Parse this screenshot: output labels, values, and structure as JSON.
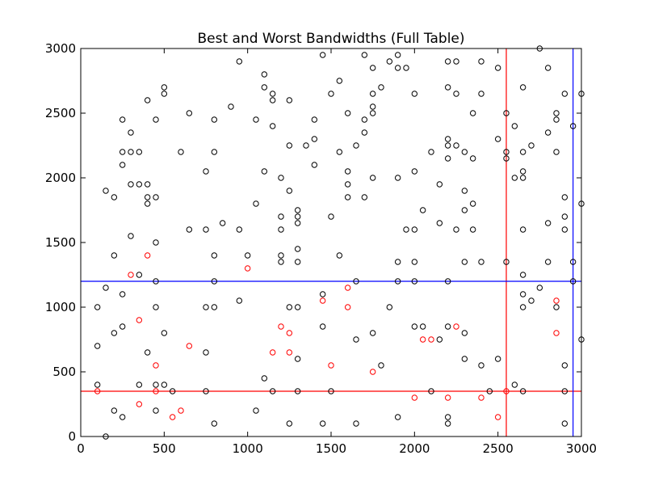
{
  "chart_data": {
    "type": "scatter",
    "title": "Best and Worst Bandwidths (Full Table)",
    "xlabel": "",
    "ylabel": "",
    "xlim": [
      0,
      3000
    ],
    "ylim": [
      0,
      3000
    ],
    "xticks": [
      0,
      500,
      1000,
      1500,
      2000,
      2500,
      3000
    ],
    "yticks": [
      0,
      500,
      1000,
      1500,
      2000,
      2500,
      3000
    ],
    "xtick_labels": [
      "0",
      "500",
      "1000",
      "1500",
      "2000",
      "2500",
      "3000"
    ],
    "ytick_labels": [
      "0",
      "500",
      "1000",
      "1500",
      "2000",
      "2500",
      "3000"
    ],
    "grid": false,
    "legend": "none",
    "colors": {
      "points_black": "#000000",
      "points_red": "#ff0000",
      "line_red": "#ff0000",
      "line_blue": "#0000ff"
    },
    "reference_lines": [
      {
        "orientation": "horizontal",
        "value": 350,
        "color": "#ff0000"
      },
      {
        "orientation": "vertical",
        "value": 2550,
        "color": "#ff0000"
      },
      {
        "orientation": "horizontal",
        "value": 1200,
        "color": "#0000ff"
      },
      {
        "orientation": "vertical",
        "value": 2950,
        "color": "#0000ff"
      }
    ],
    "series": [
      {
        "color": "#000000",
        "points": [
          [
            150,
            0
          ],
          [
            100,
            400
          ],
          [
            100,
            700
          ],
          [
            100,
            1000
          ],
          [
            150,
            1150
          ],
          [
            150,
            1900
          ],
          [
            200,
            200
          ],
          [
            200,
            800
          ],
          [
            200,
            1400
          ],
          [
            200,
            1850
          ],
          [
            250,
            150
          ],
          [
            250,
            850
          ],
          [
            250,
            1100
          ],
          [
            250,
            2100
          ],
          [
            250,
            2200
          ],
          [
            250,
            2450
          ],
          [
            300,
            1550
          ],
          [
            300,
            1950
          ],
          [
            300,
            2200
          ],
          [
            300,
            2350
          ],
          [
            350,
            400
          ],
          [
            350,
            1250
          ],
          [
            350,
            1950
          ],
          [
            350,
            2200
          ],
          [
            400,
            650
          ],
          [
            400,
            1800
          ],
          [
            400,
            1850
          ],
          [
            400,
            1950
          ],
          [
            400,
            2600
          ],
          [
            450,
            200
          ],
          [
            450,
            400
          ],
          [
            450,
            1000
          ],
          [
            450,
            1200
          ],
          [
            450,
            1500
          ],
          [
            450,
            1850
          ],
          [
            450,
            2450
          ],
          [
            500,
            400
          ],
          [
            500,
            800
          ],
          [
            500,
            2650
          ],
          [
            500,
            2700
          ],
          [
            550,
            350
          ],
          [
            600,
            2200
          ],
          [
            650,
            1600
          ],
          [
            650,
            2500
          ],
          [
            750,
            350
          ],
          [
            750,
            650
          ],
          [
            750,
            1000
          ],
          [
            750,
            1600
          ],
          [
            750,
            2050
          ],
          [
            800,
            100
          ],
          [
            800,
            1000
          ],
          [
            800,
            1200
          ],
          [
            800,
            1400
          ],
          [
            800,
            2200
          ],
          [
            800,
            2450
          ],
          [
            850,
            1650
          ],
          [
            900,
            2550
          ],
          [
            950,
            1050
          ],
          [
            950,
            1600
          ],
          [
            950,
            2900
          ],
          [
            1000,
            1400
          ],
          [
            1050,
            200
          ],
          [
            1050,
            1800
          ],
          [
            1050,
            2450
          ],
          [
            1100,
            450
          ],
          [
            1100,
            2050
          ],
          [
            1100,
            2700
          ],
          [
            1100,
            2800
          ],
          [
            1150,
            350
          ],
          [
            1150,
            2400
          ],
          [
            1150,
            2600
          ],
          [
            1150,
            2650
          ],
          [
            1200,
            1350
          ],
          [
            1200,
            1400
          ],
          [
            1200,
            1600
          ],
          [
            1200,
            1700
          ],
          [
            1200,
            2000
          ],
          [
            1250,
            100
          ],
          [
            1250,
            1000
          ],
          [
            1250,
            1900
          ],
          [
            1250,
            2250
          ],
          [
            1250,
            2600
          ],
          [
            1300,
            350
          ],
          [
            1300,
            600
          ],
          [
            1300,
            1000
          ],
          [
            1300,
            1350
          ],
          [
            1300,
            1450
          ],
          [
            1300,
            1650
          ],
          [
            1300,
            1700
          ],
          [
            1300,
            1750
          ],
          [
            1350,
            2250
          ],
          [
            1400,
            2100
          ],
          [
            1400,
            2300
          ],
          [
            1400,
            2450
          ],
          [
            1450,
            100
          ],
          [
            1450,
            850
          ],
          [
            1450,
            1100
          ],
          [
            1450,
            2950
          ],
          [
            1500,
            350
          ],
          [
            1500,
            1700
          ],
          [
            1500,
            2650
          ],
          [
            1550,
            1400
          ],
          [
            1550,
            2200
          ],
          [
            1550,
            2750
          ],
          [
            1600,
            1850
          ],
          [
            1600,
            1950
          ],
          [
            1600,
            2050
          ],
          [
            1600,
            2500
          ],
          [
            1650,
            100
          ],
          [
            1650,
            750
          ],
          [
            1650,
            1200
          ],
          [
            1650,
            2250
          ],
          [
            1700,
            1850
          ],
          [
            1700,
            2350
          ],
          [
            1700,
            2450
          ],
          [
            1700,
            2950
          ],
          [
            1750,
            800
          ],
          [
            1750,
            2000
          ],
          [
            1750,
            2500
          ],
          [
            1750,
            2550
          ],
          [
            1750,
            2650
          ],
          [
            1750,
            2850
          ],
          [
            1800,
            550
          ],
          [
            1800,
            2700
          ],
          [
            1850,
            1000
          ],
          [
            1850,
            2900
          ],
          [
            1900,
            150
          ],
          [
            1900,
            1200
          ],
          [
            1900,
            1350
          ],
          [
            1900,
            2000
          ],
          [
            1900,
            2850
          ],
          [
            1900,
            2950
          ],
          [
            1950,
            1600
          ],
          [
            1950,
            2850
          ],
          [
            2000,
            850
          ],
          [
            2000,
            1200
          ],
          [
            2000,
            1350
          ],
          [
            2000,
            1600
          ],
          [
            2000,
            2050
          ],
          [
            2000,
            2650
          ],
          [
            2050,
            850
          ],
          [
            2050,
            1750
          ],
          [
            2100,
            350
          ],
          [
            2100,
            2200
          ],
          [
            2150,
            750
          ],
          [
            2150,
            1650
          ],
          [
            2150,
            1950
          ],
          [
            2200,
            100
          ],
          [
            2200,
            150
          ],
          [
            2200,
            850
          ],
          [
            2200,
            1200
          ],
          [
            2200,
            2150
          ],
          [
            2200,
            2250
          ],
          [
            2200,
            2300
          ],
          [
            2200,
            2700
          ],
          [
            2200,
            2900
          ],
          [
            2250,
            1600
          ],
          [
            2250,
            2250
          ],
          [
            2250,
            2650
          ],
          [
            2250,
            2900
          ],
          [
            2300,
            600
          ],
          [
            2300,
            800
          ],
          [
            2300,
            1350
          ],
          [
            2300,
            1750
          ],
          [
            2300,
            1900
          ],
          [
            2300,
            2200
          ],
          [
            2350,
            1600
          ],
          [
            2350,
            1800
          ],
          [
            2350,
            2150
          ],
          [
            2350,
            2500
          ],
          [
            2400,
            550
          ],
          [
            2400,
            1350
          ],
          [
            2400,
            2650
          ],
          [
            2400,
            2900
          ],
          [
            2450,
            350
          ],
          [
            2500,
            600
          ],
          [
            2500,
            2300
          ],
          [
            2500,
            2850
          ],
          [
            2550,
            1350
          ],
          [
            2550,
            2150
          ],
          [
            2550,
            2200
          ],
          [
            2550,
            2500
          ],
          [
            2600,
            400
          ],
          [
            2600,
            2000
          ],
          [
            2600,
            2400
          ],
          [
            2650,
            350
          ],
          [
            2650,
            1000
          ],
          [
            2650,
            1100
          ],
          [
            2650,
            1250
          ],
          [
            2650,
            1600
          ],
          [
            2650,
            2000
          ],
          [
            2650,
            2050
          ],
          [
            2650,
            2200
          ],
          [
            2650,
            2700
          ],
          [
            2700,
            1050
          ],
          [
            2700,
            2250
          ],
          [
            2750,
            1150
          ],
          [
            2750,
            3000
          ],
          [
            2800,
            1350
          ],
          [
            2800,
            1650
          ],
          [
            2800,
            2350
          ],
          [
            2800,
            2850
          ],
          [
            2850,
            1000
          ],
          [
            2850,
            2200
          ],
          [
            2850,
            2450
          ],
          [
            2850,
            2500
          ],
          [
            2900,
            100
          ],
          [
            2900,
            350
          ],
          [
            2900,
            550
          ],
          [
            2900,
            1600
          ],
          [
            2900,
            1700
          ],
          [
            2900,
            1850
          ],
          [
            2900,
            2650
          ],
          [
            2950,
            1200
          ],
          [
            2950,
            1350
          ],
          [
            2950,
            2400
          ],
          [
            3000,
            750
          ],
          [
            3000,
            1800
          ],
          [
            3000,
            2650
          ]
        ]
      },
      {
        "color": "#ff0000",
        "points": [
          [
            100,
            350
          ],
          [
            300,
            1250
          ],
          [
            350,
            250
          ],
          [
            350,
            900
          ],
          [
            400,
            1400
          ],
          [
            450,
            350
          ],
          [
            450,
            550
          ],
          [
            550,
            150
          ],
          [
            600,
            200
          ],
          [
            650,
            700
          ],
          [
            1000,
            1300
          ],
          [
            1150,
            650
          ],
          [
            1200,
            850
          ],
          [
            1250,
            650
          ],
          [
            1250,
            800
          ],
          [
            1450,
            1050
          ],
          [
            1500,
            550
          ],
          [
            1600,
            1000
          ],
          [
            1600,
            1150
          ],
          [
            1750,
            500
          ],
          [
            2000,
            300
          ],
          [
            2050,
            750
          ],
          [
            2100,
            750
          ],
          [
            2200,
            300
          ],
          [
            2250,
            850
          ],
          [
            2400,
            300
          ],
          [
            2500,
            150
          ],
          [
            2550,
            350
          ],
          [
            2850,
            800
          ],
          [
            2850,
            1050
          ]
        ]
      }
    ]
  }
}
